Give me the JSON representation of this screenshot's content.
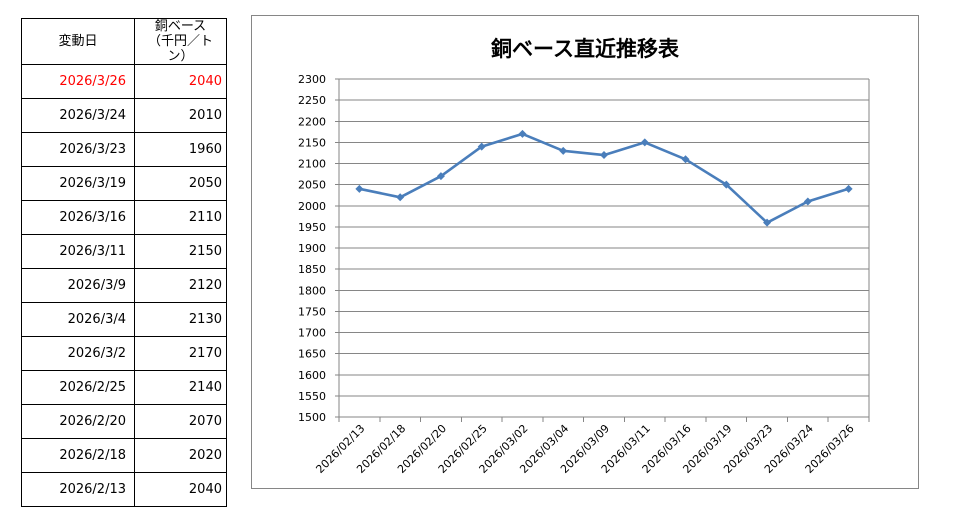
{
  "table": {
    "header_date": "変動日",
    "header_price_line1": "銅ベース",
    "header_price_line2": "（千円／トン）",
    "rows": [
      {
        "date": "2026/3/26",
        "price": "2040"
      },
      {
        "date": "2026/3/24",
        "price": "2010"
      },
      {
        "date": "2026/3/23",
        "price": "1960"
      },
      {
        "date": "2026/3/19",
        "price": "2050"
      },
      {
        "date": "2026/3/16",
        "price": "2110"
      },
      {
        "date": "2026/3/11",
        "price": "2150"
      },
      {
        "date": "2026/3/9",
        "price": "2120"
      },
      {
        "date": "2026/3/4",
        "price": "2130"
      },
      {
        "date": "2026/3/2",
        "price": "2170"
      },
      {
        "date": "2026/2/25",
        "price": "2140"
      },
      {
        "date": "2026/2/20",
        "price": "2070"
      },
      {
        "date": "2026/2/18",
        "price": "2020"
      },
      {
        "date": "2026/2/13",
        "price": "2040"
      }
    ],
    "highlight_color": "#ff0000"
  },
  "chart_data": {
    "type": "line",
    "title": "銅ベース直近推移表",
    "xlabel": "",
    "ylabel": "",
    "x": [
      "2026/02/13",
      "2026/02/18",
      "2026/02/20",
      "2026/02/25",
      "2026/03/02",
      "2026/03/04",
      "2026/03/09",
      "2026/03/11",
      "2026/03/16",
      "2026/03/19",
      "2026/03/23",
      "2026/03/24",
      "2026/03/26"
    ],
    "series": [
      {
        "values": [
          2040,
          2020,
          2070,
          2140,
          2170,
          2130,
          2120,
          2150,
          2110,
          2050,
          1960,
          2010,
          2040
        ],
        "color": "#4a7ebb"
      }
    ],
    "ylim": [
      1500,
      2300
    ],
    "ytick_step": 50,
    "grid": true,
    "legend": "none",
    "marker": "diamond"
  }
}
